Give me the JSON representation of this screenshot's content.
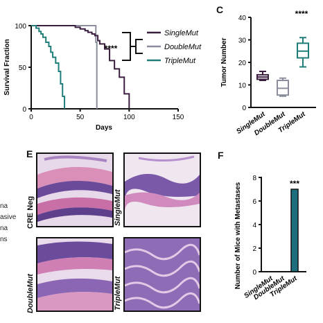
{
  "panel_letters": {
    "c": "C",
    "e": "E",
    "f": "F"
  },
  "left_fragments": [
    "na",
    "asive",
    "na",
    "ns"
  ],
  "colors": {
    "single": "#3a1d3f",
    "double": "#8a8d9c",
    "triple": "#1f7d7a",
    "bar": "#1e6f7d"
  },
  "survival": {
    "ylabel": "Survival Fraction",
    "xlabel": "Days",
    "yticks": [
      "0",
      "50",
      "100"
    ],
    "xticks": [
      "0",
      "50",
      "100",
      "150"
    ],
    "significance": "****",
    "legend": [
      "SingleMut",
      "DoubleMut",
      "TripleMut"
    ]
  },
  "histology": {
    "labels": [
      "CRE Neg",
      "SingleMut",
      "DoubleMut",
      "TripleMut"
    ]
  },
  "chart_data": [
    {
      "type": "line",
      "chart": "survival-curve",
      "xlabel": "Days",
      "ylabel": "Survival Fraction",
      "xlim": [
        0,
        150
      ],
      "ylim": [
        0,
        100
      ],
      "series": [
        {
          "name": "SingleMut",
          "x": [
            0,
            40,
            45,
            50,
            55,
            58,
            62,
            65,
            68,
            70,
            75,
            80,
            85,
            90,
            95,
            100
          ],
          "y": [
            100,
            100,
            98,
            96,
            94,
            92,
            90,
            88,
            82,
            78,
            72,
            58,
            48,
            38,
            18,
            0
          ]
        },
        {
          "name": "DoubleMut",
          "x": [
            0,
            60,
            64,
            66,
            67,
            67
          ],
          "y": [
            100,
            100,
            100,
            80,
            80,
            0
          ]
        },
        {
          "name": "TripleMut",
          "x": [
            0,
            5,
            8,
            10,
            12,
            15,
            18,
            20,
            22,
            25,
            28,
            30,
            32,
            34
          ],
          "y": [
            100,
            97,
            93,
            90,
            86,
            80,
            75,
            68,
            62,
            55,
            45,
            30,
            15,
            0
          ]
        }
      ],
      "annotation": "****"
    },
    {
      "type": "box",
      "chart": "tumor-number",
      "ylabel": "Tumor Number",
      "ylim": [
        0,
        40
      ],
      "yticks": [
        "0",
        "10",
        "20",
        "30",
        "40"
      ],
      "categories": [
        "SingleMut",
        "DoubleMut",
        "TripleMut"
      ],
      "boxes": [
        {
          "min": 12,
          "q1": 12.5,
          "median": 13.5,
          "q3": 14.5,
          "max": 16
        },
        {
          "min": 5,
          "q1": 5.5,
          "median": 8.5,
          "q3": 12,
          "max": 13
        },
        {
          "min": 18,
          "q1": 22,
          "median": 25,
          "q3": 28.5,
          "max": 31
        }
      ],
      "annotation": "****"
    },
    {
      "type": "bar",
      "chart": "metastases",
      "ylabel": "Number of Mice with Metastases",
      "ylim": [
        0,
        8
      ],
      "yticks": [
        "0",
        "2",
        "4",
        "6",
        "8"
      ],
      "categories": [
        "SingleMut",
        "DoubleMut",
        "TripleMut"
      ],
      "values": [
        0,
        0,
        7
      ],
      "annotation": "***"
    }
  ]
}
